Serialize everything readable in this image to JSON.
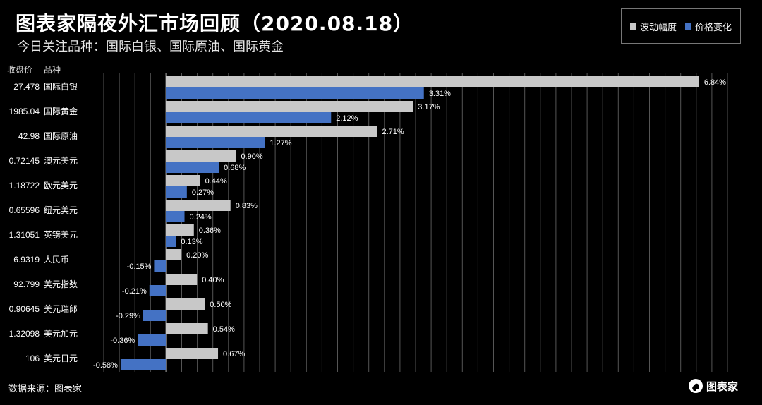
{
  "header": {
    "title": "图表家隔夜外汇市场回顾（2020.08.18）",
    "subtitle": "今日关注品种：国际白银、国际原油、国际黄金"
  },
  "table_headers": {
    "price": "收盘价",
    "name": "品种"
  },
  "footer": {
    "source": "数据来源：图表家",
    "logo_text": "图表家"
  },
  "colors": {
    "background": "#000000",
    "volatility": "#c8c8c8",
    "price_change": "#4472c4",
    "grid": "#555555"
  },
  "chart_data": {
    "type": "bar",
    "orientation": "horizontal",
    "categories": [
      "国际白银",
      "国际黄金",
      "国际原油",
      "澳元美元",
      "欧元美元",
      "纽元美元",
      "英镑美元",
      "人民币",
      "美元指数",
      "美元瑞郎",
      "美元加元",
      "美元日元"
    ],
    "close_prices": [
      "27.478",
      "1985.04",
      "42.98",
      "0.72145",
      "1.18722",
      "0.65596",
      "1.31051",
      "6.9319",
      "92.799",
      "0.90645",
      "1.32098",
      "106"
    ],
    "series": [
      {
        "name": "波动幅度",
        "values": [
          6.84,
          3.17,
          2.71,
          0.9,
          0.44,
          0.83,
          0.36,
          0.2,
          0.4,
          0.5,
          0.54,
          0.67
        ],
        "labels": [
          "6.84%",
          "3.17%",
          "2.71%",
          "0.90%",
          "0.44%",
          "0.83%",
          "0.36%",
          "0.20%",
          "0.40%",
          "0.50%",
          "0.54%",
          "0.67%"
        ]
      },
      {
        "name": "价格变化",
        "values": [
          3.31,
          2.12,
          1.27,
          0.68,
          0.27,
          0.24,
          0.13,
          -0.15,
          -0.21,
          -0.29,
          -0.36,
          -0.58
        ],
        "labels": [
          "3.31%",
          "2.12%",
          "1.27%",
          "0.68%",
          "0.27%",
          "0.24%",
          "0.13%",
          "-0.15%",
          "-0.21%",
          "-0.29%",
          "-0.36%",
          "-0.58%"
        ]
      }
    ],
    "xlim": [
      -0.6,
      7.4
    ],
    "grid": true,
    "legend": "top-right"
  }
}
